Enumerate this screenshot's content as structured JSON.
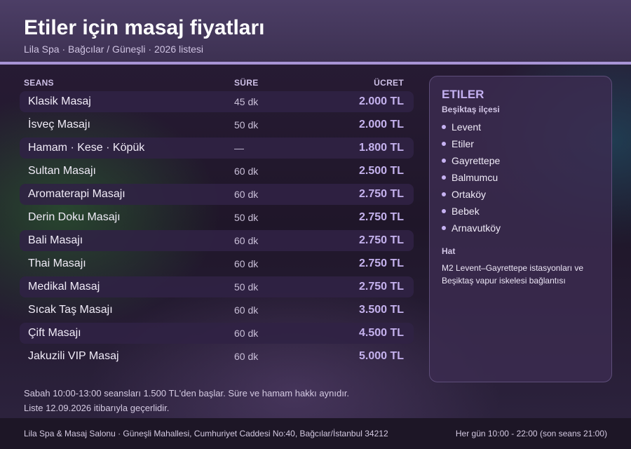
{
  "header": {
    "title": "Etiler için masaj fiyatları",
    "subtitle": "Lila Spa · Bağcılar / Güneşli · 2026 listesi"
  },
  "table": {
    "columns": [
      "SEANS",
      "SÜRE",
      "ÜCRET"
    ],
    "rows": [
      {
        "name": "Klasik Masaj",
        "duration": "45 dk",
        "price": "2.000 TL"
      },
      {
        "name": "İsveç Masajı",
        "duration": "50 dk",
        "price": "2.000 TL"
      },
      {
        "name": "Hamam · Kese · Köpük",
        "duration": "—",
        "price": "1.800 TL"
      },
      {
        "name": "Sultan Masajı",
        "duration": "60 dk",
        "price": "2.500 TL"
      },
      {
        "name": "Aromaterapi Masajı",
        "duration": "60 dk",
        "price": "2.750 TL"
      },
      {
        "name": "Derin Doku Masajı",
        "duration": "50 dk",
        "price": "2.750 TL"
      },
      {
        "name": "Bali Masajı",
        "duration": "60 dk",
        "price": "2.750 TL"
      },
      {
        "name": "Thai Masajı",
        "duration": "60 dk",
        "price": "2.750 TL"
      },
      {
        "name": "Medikal Masaj",
        "duration": "50 dk",
        "price": "2.750 TL"
      },
      {
        "name": "Sıcak Taş Masajı",
        "duration": "60 dk",
        "price": "3.500 TL"
      },
      {
        "name": "Çift Masajı",
        "duration": "60 dk",
        "price": "4.500 TL"
      },
      {
        "name": "Jakuzili VIP Masaj",
        "duration": "60 dk",
        "price": "5.000 TL"
      }
    ]
  },
  "sidebar": {
    "title": "ETILER",
    "district": "Beşiktaş ilçesi",
    "neighborhoods": [
      "Levent",
      "Etiler",
      "Gayrettepe",
      "Balmumcu",
      "Ortaköy",
      "Bebek",
      "Arnavutköy"
    ],
    "hat_label": "Hat",
    "hat_text": "M2 Levent–Gayrettepe istasyonları ve Beşiktaş vapur iskelesi bağlantısı"
  },
  "notes": {
    "line1": "Sabah 10:00-13:00 seansları 1.500 TL'den başlar. Süre ve hamam hakkı aynıdır.",
    "line2": "Liste 12.09.2026 itibarıyla geçerlidir."
  },
  "footer": {
    "address": "Lila Spa & Masaj Salonu · Güneşli Mahallesi, Cumhuriyet Caddesi No:40, Bağcılar/İstanbul 34212",
    "hours": "Her gün 10:00 - 22:00 (son seans 21:00)"
  },
  "colors": {
    "accent": "#a894d6",
    "price": "#c5b2ee",
    "header_bg": "#4c3e66",
    "footer_bg": "#1d1626"
  }
}
